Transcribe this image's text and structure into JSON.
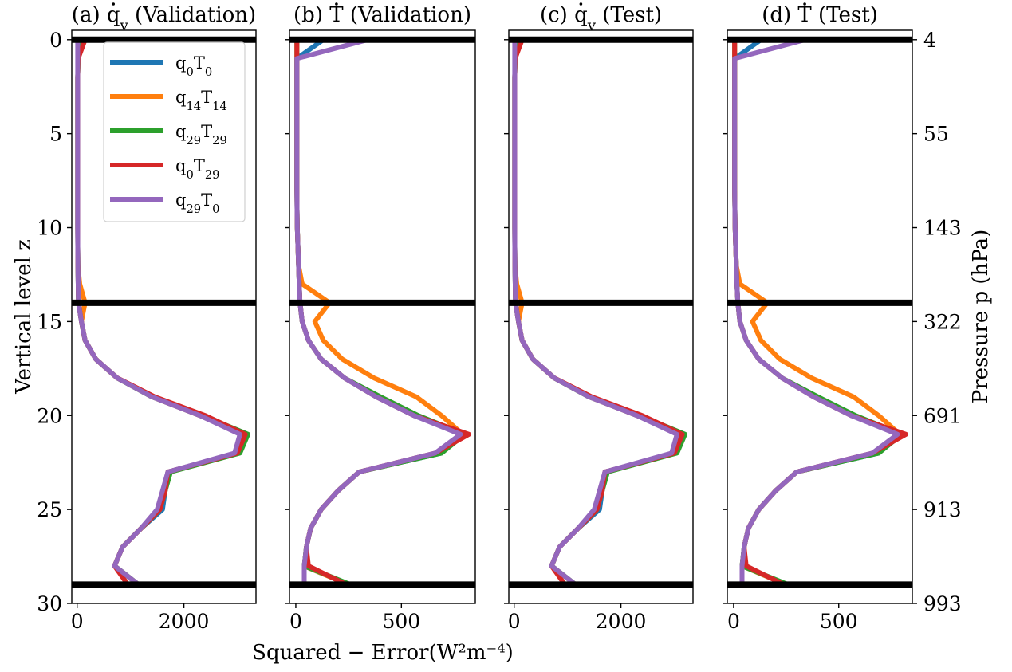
{
  "chart_data": {
    "type": "line",
    "x_axis_label": "Squared − Error(W²m⁻⁴)",
    "y_axis_label": "Vertical level z",
    "y2_axis_label": "Pressure p (hPa)",
    "y_ticks": [
      0,
      5,
      10,
      15,
      20,
      25,
      30
    ],
    "y_ticks_labels": [
      "0",
      "5",
      "10",
      "15",
      "20",
      "25",
      "30"
    ],
    "y2_tick_labels": [
      "4",
      "55",
      "143",
      "322",
      "691",
      "913",
      "993"
    ],
    "ylim": [
      30,
      -0.5
    ],
    "hlines": [
      0,
      14,
      29
    ],
    "legend": {
      "placement": "upper-left of panel a",
      "entries": [
        {
          "base1": "q",
          "sub1": "0",
          "base2": "T",
          "sub2": "0",
          "color": "#1f77b4"
        },
        {
          "base1": "q",
          "sub1": "14",
          "base2": "T",
          "sub2": "14",
          "color": "#ff7f0e"
        },
        {
          "base1": "q",
          "sub1": "29",
          "base2": "T",
          "sub2": "29",
          "color": "#2ca02c"
        },
        {
          "base1": "q",
          "sub1": "0",
          "base2": "T",
          "sub2": "29",
          "color": "#d62728"
        },
        {
          "base1": "q",
          "sub1": "29",
          "base2": "T",
          "sub2": "0",
          "color": "#9467bd"
        }
      ]
    },
    "panels": [
      {
        "title_prefix": "(a) ",
        "title_var": "q",
        "title_sub": "v",
        "title_suffix": " (Validation)",
        "xlim": [
          -100,
          3350
        ],
        "x_ticks": [
          0,
          2000
        ],
        "x_tick_labels": [
          "0",
          "2000"
        ],
        "series": [
          {
            "color": "#1f77b4",
            "x": [
              50,
              20,
              10,
              10,
              10,
              10,
              10,
              10,
              10,
              10,
              10,
              12,
              15,
              20,
              25,
              80,
              150,
              350,
              750,
              1400,
              2300,
              3100,
              3000,
              1700,
              1650,
              1600,
              1200,
              850,
              700,
              1150
            ]
          },
          {
            "color": "#ff7f0e",
            "x": [
              50,
              20,
              10,
              10,
              10,
              10,
              10,
              10,
              10,
              10,
              10,
              12,
              15,
              50,
              150,
              80,
              150,
              350,
              750,
              1400,
              2300,
              3100,
              3000,
              1700,
              1650,
              1550,
              1200,
              850,
              700,
              1150
            ]
          },
          {
            "color": "#2ca02c",
            "x": [
              50,
              20,
              10,
              10,
              10,
              10,
              10,
              10,
              10,
              10,
              10,
              12,
              15,
              20,
              25,
              80,
              150,
              350,
              750,
              1400,
              2350,
              3200,
              3050,
              1750,
              1650,
              1550,
              1200,
              850,
              700,
              1150
            ]
          },
          {
            "color": "#d62728",
            "x": [
              150,
              20,
              10,
              10,
              10,
              10,
              10,
              10,
              10,
              10,
              10,
              12,
              15,
              20,
              25,
              80,
              150,
              350,
              750,
              1450,
              2400,
              3150,
              3000,
              1700,
              1650,
              1550,
              1200,
              850,
              700,
              950
            ]
          },
          {
            "color": "#9467bd",
            "x": [
              10,
              10,
              10,
              10,
              10,
              10,
              10,
              10,
              10,
              10,
              10,
              12,
              15,
              20,
              25,
              80,
              150,
              350,
              750,
              1400,
              2300,
              3050,
              2950,
              1700,
              1600,
              1500,
              1200,
              850,
              700,
              1150
            ]
          }
        ]
      },
      {
        "title_prefix": "(b) ",
        "title_var": "T",
        "title_sub": "",
        "title_suffix": " (Validation)",
        "xlim": [
          -30,
          850
        ],
        "x_ticks": [
          0,
          500
        ],
        "x_tick_labels": [
          "0",
          "500"
        ],
        "series": [
          {
            "color": "#1f77b4",
            "x": [
              130,
              5,
              5,
              5,
              5,
              5,
              5,
              5,
              5,
              6,
              7,
              10,
              13,
              16,
              20,
              30,
              60,
              120,
              230,
              380,
              560,
              790,
              690,
              300,
              200,
              120,
              70,
              50,
              40,
              250
            ]
          },
          {
            "color": "#ff7f0e",
            "x": [
              5,
              5,
              5,
              5,
              5,
              5,
              5,
              5,
              5,
              6,
              7,
              10,
              13,
              30,
              160,
              90,
              130,
              220,
              370,
              570,
              690,
              790,
              680,
              300,
              200,
              120,
              70,
              50,
              40,
              250
            ]
          },
          {
            "color": "#2ca02c",
            "x": [
              5,
              5,
              5,
              5,
              5,
              5,
              5,
              5,
              5,
              6,
              7,
              10,
              13,
              16,
              20,
              30,
              60,
              120,
              230,
              400,
              580,
              800,
              690,
              300,
              200,
              120,
              70,
              50,
              40,
              260
            ]
          },
          {
            "color": "#d62728",
            "x": [
              5,
              5,
              5,
              5,
              5,
              5,
              5,
              5,
              5,
              6,
              7,
              10,
              13,
              16,
              20,
              30,
              60,
              120,
              230,
              380,
              560,
              820,
              660,
              300,
              200,
              120,
              70,
              50,
              60,
              240
            ]
          },
          {
            "color": "#9467bd",
            "x": [
              340,
              5,
              5,
              5,
              5,
              5,
              5,
              5,
              5,
              6,
              7,
              10,
              13,
              16,
              20,
              30,
              60,
              120,
              230,
              380,
              560,
              780,
              660,
              300,
              200,
              120,
              70,
              50,
              40,
              40
            ]
          }
        ]
      },
      {
        "title_prefix": "(c) ",
        "title_var": "q",
        "title_sub": "v",
        "title_suffix": " (Test)",
        "xlim": [
          -100,
          3350
        ],
        "x_ticks": [
          0,
          2000
        ],
        "x_tick_labels": [
          "0",
          "2000"
        ],
        "series": [
          {
            "color": "#1f77b4",
            "x": [
              50,
              20,
              10,
              10,
              10,
              10,
              10,
              10,
              10,
              10,
              10,
              12,
              15,
              20,
              25,
              80,
              150,
              350,
              750,
              1400,
              2300,
              3100,
              3000,
              1700,
              1650,
              1600,
              1200,
              850,
              700,
              1150
            ]
          },
          {
            "color": "#ff7f0e",
            "x": [
              50,
              20,
              10,
              10,
              10,
              10,
              10,
              10,
              10,
              10,
              10,
              12,
              15,
              50,
              150,
              80,
              150,
              350,
              750,
              1400,
              2300,
              3100,
              3000,
              1700,
              1650,
              1550,
              1200,
              850,
              700,
              1150
            ]
          },
          {
            "color": "#2ca02c",
            "x": [
              50,
              20,
              10,
              10,
              10,
              10,
              10,
              10,
              10,
              10,
              10,
              12,
              15,
              20,
              25,
              80,
              150,
              350,
              750,
              1400,
              2350,
              3200,
              3050,
              1750,
              1650,
              1550,
              1200,
              850,
              700,
              1150
            ]
          },
          {
            "color": "#d62728",
            "x": [
              150,
              20,
              10,
              10,
              10,
              10,
              10,
              10,
              10,
              10,
              10,
              12,
              15,
              20,
              25,
              80,
              150,
              350,
              750,
              1450,
              2400,
              3150,
              3000,
              1700,
              1650,
              1550,
              1200,
              850,
              700,
              950
            ]
          },
          {
            "color": "#9467bd",
            "x": [
              10,
              10,
              10,
              10,
              10,
              10,
              10,
              10,
              10,
              10,
              10,
              12,
              15,
              20,
              25,
              80,
              150,
              350,
              750,
              1400,
              2300,
              3050,
              2950,
              1700,
              1600,
              1500,
              1200,
              850,
              700,
              1150
            ]
          }
        ]
      },
      {
        "title_prefix": "(d) ",
        "title_var": "T",
        "title_sub": "",
        "title_suffix": " (Test)",
        "xlim": [
          -30,
          850
        ],
        "x_ticks": [
          0,
          500
        ],
        "x_tick_labels": [
          "0",
          "500"
        ],
        "series": [
          {
            "color": "#1f77b4",
            "x": [
              130,
              5,
              5,
              5,
              5,
              5,
              5,
              5,
              5,
              6,
              7,
              10,
              13,
              16,
              20,
              30,
              60,
              120,
              230,
              380,
              560,
              790,
              690,
              300,
              200,
              120,
              70,
              50,
              40,
              250
            ]
          },
          {
            "color": "#ff7f0e",
            "x": [
              5,
              5,
              5,
              5,
              5,
              5,
              5,
              5,
              5,
              6,
              7,
              10,
              13,
              30,
              160,
              90,
              130,
              220,
              370,
              570,
              690,
              790,
              680,
              300,
              200,
              120,
              70,
              50,
              40,
              250
            ]
          },
          {
            "color": "#2ca02c",
            "x": [
              5,
              5,
              5,
              5,
              5,
              5,
              5,
              5,
              5,
              6,
              7,
              10,
              13,
              16,
              20,
              30,
              60,
              120,
              230,
              400,
              580,
              800,
              690,
              300,
              200,
              120,
              70,
              50,
              40,
              260
            ]
          },
          {
            "color": "#d62728",
            "x": [
              5,
              5,
              5,
              5,
              5,
              5,
              5,
              5,
              5,
              6,
              7,
              10,
              13,
              16,
              20,
              30,
              60,
              120,
              230,
              380,
              560,
              820,
              660,
              300,
              200,
              120,
              70,
              50,
              60,
              240
            ]
          },
          {
            "color": "#9467bd",
            "x": [
              340,
              5,
              5,
              5,
              5,
              5,
              5,
              5,
              5,
              6,
              7,
              10,
              13,
              16,
              20,
              30,
              60,
              120,
              230,
              380,
              560,
              780,
              660,
              300,
              200,
              120,
              70,
              50,
              40,
              40
            ]
          }
        ]
      }
    ]
  }
}
